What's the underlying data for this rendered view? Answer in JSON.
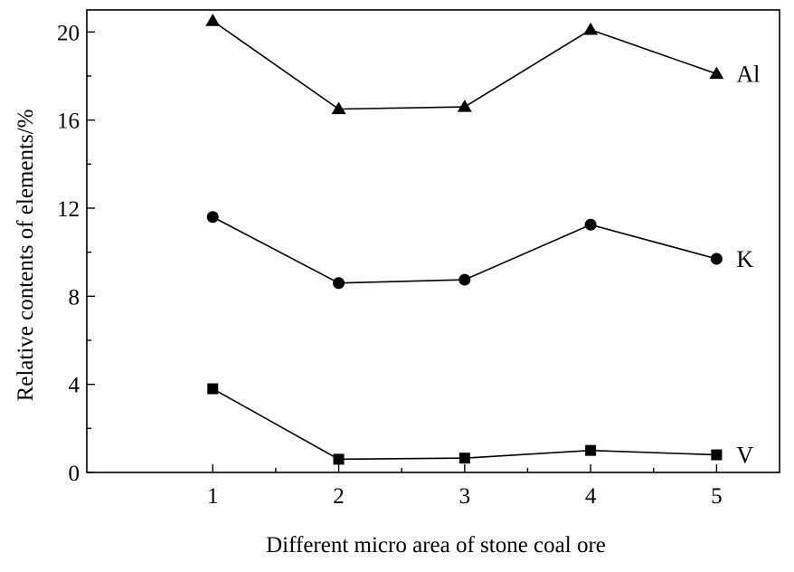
{
  "chart_data": {
    "type": "line",
    "x": [
      1,
      2,
      3,
      4,
      5
    ],
    "xlabel": "Different micro area of stone coal ore",
    "ylabel": "Relative contents of elements/%",
    "xlim": [
      0.0,
      5.5
    ],
    "ylim": [
      0,
      21
    ],
    "xticks": [
      "1",
      "2",
      "3",
      "4",
      "5"
    ],
    "yticks": [
      "0",
      "4",
      "8",
      "12",
      "16",
      "20"
    ],
    "grid": false,
    "legend": "series labels at right end of each line",
    "series": [
      {
        "name": "Al",
        "marker": "triangle",
        "values": [
          20.5,
          16.5,
          16.6,
          20.1,
          18.1
        ]
      },
      {
        "name": "K",
        "marker": "circle",
        "values": [
          11.6,
          8.6,
          8.75,
          11.25,
          9.7
        ]
      },
      {
        "name": "V",
        "marker": "square",
        "values": [
          3.8,
          0.6,
          0.65,
          1.0,
          0.8
        ]
      }
    ]
  }
}
